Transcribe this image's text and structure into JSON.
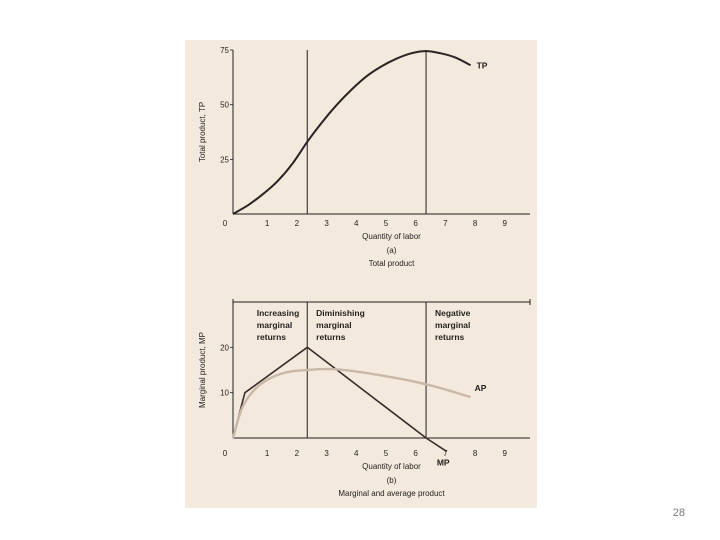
{
  "slide": {
    "page_number": "28"
  },
  "colors": {
    "panel_bg": "#f3e9dc",
    "tp_line": "#2b2224",
    "mp_line": "#3a2b2c",
    "ap_line": "#c9b8a8",
    "axis": "#231f20"
  },
  "chart_data": [
    {
      "type": "line",
      "panel_label": "(a)",
      "caption": "Total product",
      "xlabel": "Quantity of labor",
      "ylabel": "Total product, TP",
      "xlim": [
        0,
        10
      ],
      "ylim": [
        0,
        75
      ],
      "x_ticks": [
        "0",
        "1",
        "2",
        "3",
        "4",
        "5",
        "6",
        "7",
        "8",
        "9"
      ],
      "y_ticks": [
        "25",
        "50",
        "75"
      ],
      "y_tick_values": [
        25,
        50,
        75
      ],
      "vlines": [
        2.5,
        6.5
      ],
      "series": [
        {
          "name": "TP",
          "x": [
            0,
            0.5,
            1,
            1.5,
            2,
            2.5,
            3,
            3.5,
            4,
            4.5,
            5,
            5.5,
            6,
            6.5,
            7,
            7.5,
            8
          ],
          "y": [
            0,
            4,
            9,
            15,
            23,
            33,
            42,
            50,
            57,
            63,
            67.5,
            71,
            73.5,
            74.5,
            73.5,
            71.5,
            68
          ]
        }
      ]
    },
    {
      "type": "line",
      "panel_label": "(b)",
      "caption": "Marginal and average product",
      "xlabel": "Quantity of labor",
      "ylabel": "Marginal product, MP",
      "xlim": [
        0,
        10
      ],
      "ylim": [
        0,
        30
      ],
      "x_ticks": [
        "0",
        "1",
        "2",
        "3",
        "4",
        "5",
        "6",
        "7",
        "8",
        "9"
      ],
      "y_ticks": [
        "10",
        "20"
      ],
      "y_tick_values": [
        10,
        20
      ],
      "vlines": [
        2.5,
        6.5
      ],
      "regions": [
        {
          "lines": [
            "Increasing",
            "marginal",
            "returns"
          ]
        },
        {
          "lines": [
            "Diminishing",
            "marginal",
            "returns"
          ]
        },
        {
          "lines": [
            "Negative",
            "marginal",
            "returns"
          ]
        }
      ],
      "series": [
        {
          "name": "MP",
          "x": [
            0,
            0.4,
            2.5,
            6.5,
            7.2
          ],
          "y": [
            0,
            10,
            20,
            0,
            -3
          ]
        },
        {
          "name": "AP",
          "x": [
            0,
            0.3,
            0.7,
            1.2,
            1.8,
            2.5,
            3.2,
            4,
            5,
            6,
            7,
            8
          ],
          "y": [
            0,
            6.5,
            10.5,
            13,
            14.5,
            15,
            15.2,
            14.8,
            13.8,
            12.6,
            11,
            9
          ]
        }
      ]
    }
  ]
}
